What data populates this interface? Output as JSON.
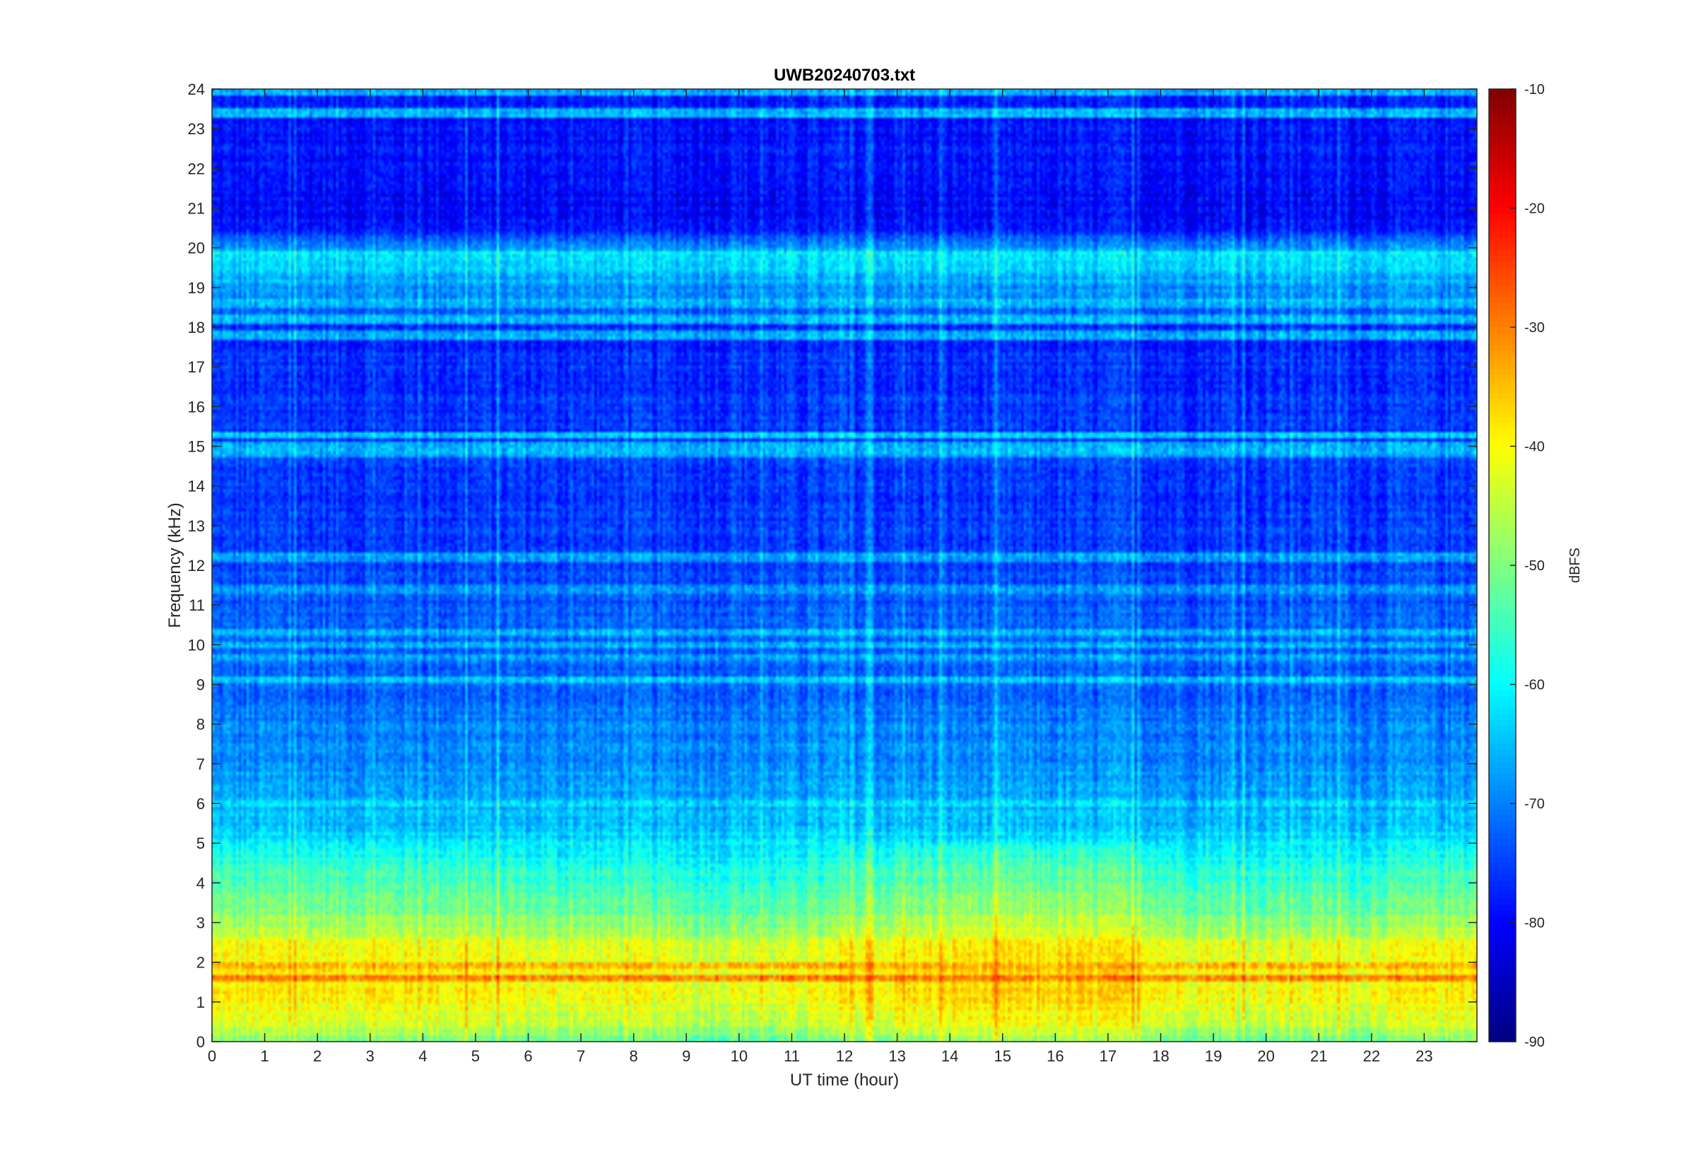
{
  "chart_data": {
    "type": "heatmap",
    "title": "UWB20240703.txt",
    "xlabel": "UT time (hour)",
    "ylabel": "Frequency (kHz)",
    "xlim": [
      0,
      24
    ],
    "ylim": [
      0,
      24
    ],
    "x_ticks": [
      "0",
      "1",
      "2",
      "3",
      "4",
      "5",
      "6",
      "7",
      "8",
      "9",
      "10",
      "11",
      "12",
      "13",
      "14",
      "15",
      "16",
      "17",
      "18",
      "19",
      "20",
      "21",
      "22",
      "23"
    ],
    "y_ticks": [
      "0",
      "1",
      "2",
      "3",
      "4",
      "5",
      "6",
      "7",
      "8",
      "9",
      "10",
      "11",
      "12",
      "13",
      "14",
      "15",
      "16",
      "17",
      "18",
      "19",
      "20",
      "21",
      "22",
      "23",
      "24"
    ],
    "colorbar": {
      "label": "dBFS",
      "range": [
        -90,
        -10
      ],
      "ticks": [
        "-10",
        "-20",
        "-30",
        "-40",
        "-50",
        "-60",
        "-70",
        "-80",
        "-90"
      ],
      "colormap": "jet"
    },
    "level_profile_by_frequency": {
      "frequency_khz": [
        0,
        0.5,
        1.0,
        1.5,
        2.0,
        2.5,
        3.0,
        3.5,
        4.0,
        4.5,
        5.0,
        5.5,
        6.0,
        7.0,
        8.0,
        9.0,
        10.0,
        12.0,
        14.0,
        16.0,
        18.0,
        19.7,
        20.5,
        21.0,
        22.0,
        24.0
      ],
      "level_dbfs": [
        -52,
        -44,
        -42,
        -40,
        -41,
        -44,
        -50,
        -53,
        -56,
        -59,
        -62,
        -65,
        -66,
        -69,
        -70,
        -72,
        -72,
        -75,
        -76,
        -76,
        -77,
        -62,
        -79,
        -80,
        -79,
        -78
      ]
    },
    "narrowband_lines_khz": [
      {
        "frequency": 19.8,
        "level": -62
      },
      {
        "frequency": 18.6,
        "level": -66
      },
      {
        "frequency": 18.2,
        "level": -66
      },
      {
        "frequency": 17.8,
        "level": -67
      },
      {
        "frequency": 15.3,
        "level": -64
      },
      {
        "frequency": 15.0,
        "level": -66
      },
      {
        "frequency": 14.8,
        "level": -67
      },
      {
        "frequency": 12.2,
        "level": -68
      },
      {
        "frequency": 11.4,
        "level": -68
      },
      {
        "frequency": 10.3,
        "level": -65
      },
      {
        "frequency": 10.0,
        "level": -66
      },
      {
        "frequency": 9.7,
        "level": -68
      },
      {
        "frequency": 9.1,
        "level": -66
      },
      {
        "frequency": 6.0,
        "level": -63
      },
      {
        "frequency": 23.4,
        "level": -66
      },
      {
        "frequency": 23.9,
        "level": -66
      },
      {
        "frequency": 1.6,
        "level": -30
      },
      {
        "frequency": 1.9,
        "level": -33
      }
    ],
    "hourly_activity_offset_db": [
      2,
      2,
      2,
      2,
      2,
      1,
      0,
      0,
      0,
      -1,
      -1,
      0,
      2,
      3,
      4,
      4,
      4,
      3,
      1,
      0,
      0,
      0,
      1,
      2
    ]
  }
}
